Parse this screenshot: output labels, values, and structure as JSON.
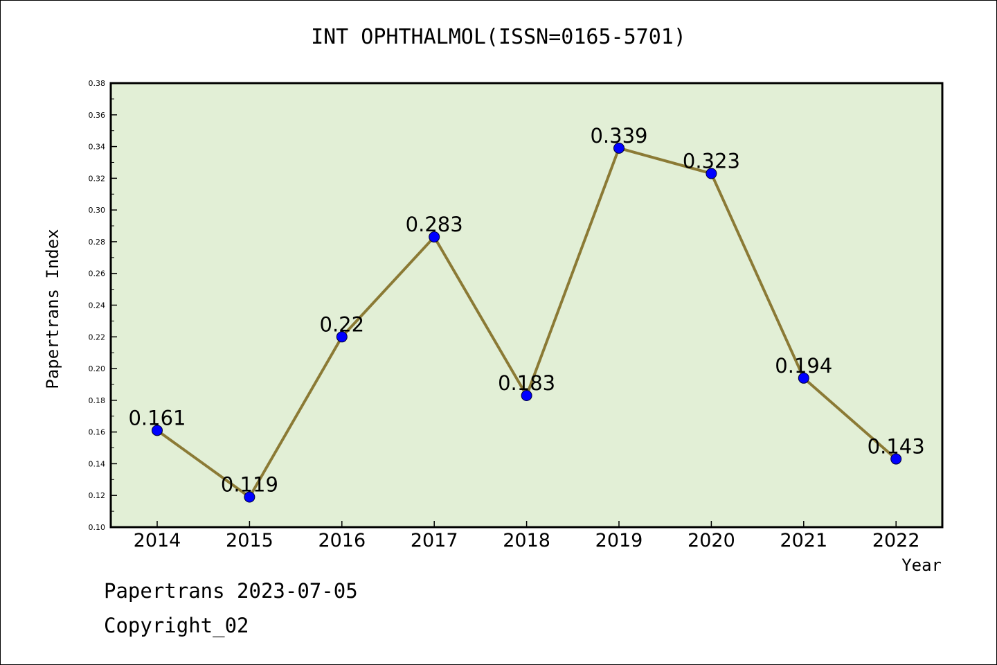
{
  "chart_data": {
    "type": "line",
    "title": "INT OPHTHALMOL(ISSN=0165-5701)",
    "xlabel": "Year",
    "ylabel": "Papertrans Index",
    "categories": [
      "2014",
      "2015",
      "2016",
      "2017",
      "2018",
      "2019",
      "2020",
      "2021",
      "2022"
    ],
    "series": [
      {
        "values": [
          0.161,
          0.119,
          0.22,
          0.283,
          0.183,
          0.339,
          0.323,
          0.194,
          0.143
        ]
      }
    ],
    "data_labels": [
      "0.161",
      "0.119",
      "0.22",
      "0.283",
      "0.183",
      "0.339",
      "0.323",
      "0.194",
      "0.143"
    ],
    "ylim": [
      0.1,
      0.38
    ],
    "yticks": [
      "0.10",
      "0.12",
      "0.14",
      "0.16",
      "0.18",
      "0.20",
      "0.22",
      "0.24",
      "0.26",
      "0.28",
      "0.30",
      "0.32",
      "0.34",
      "0.36",
      "0.38"
    ],
    "grid": false,
    "colors": {
      "plot_background": "#e2efd6",
      "line": "#8b7a35",
      "marker": "#0000ff"
    }
  },
  "footer": {
    "line1": "Papertrans 2023-07-05",
    "line2": "Copyright_02"
  }
}
